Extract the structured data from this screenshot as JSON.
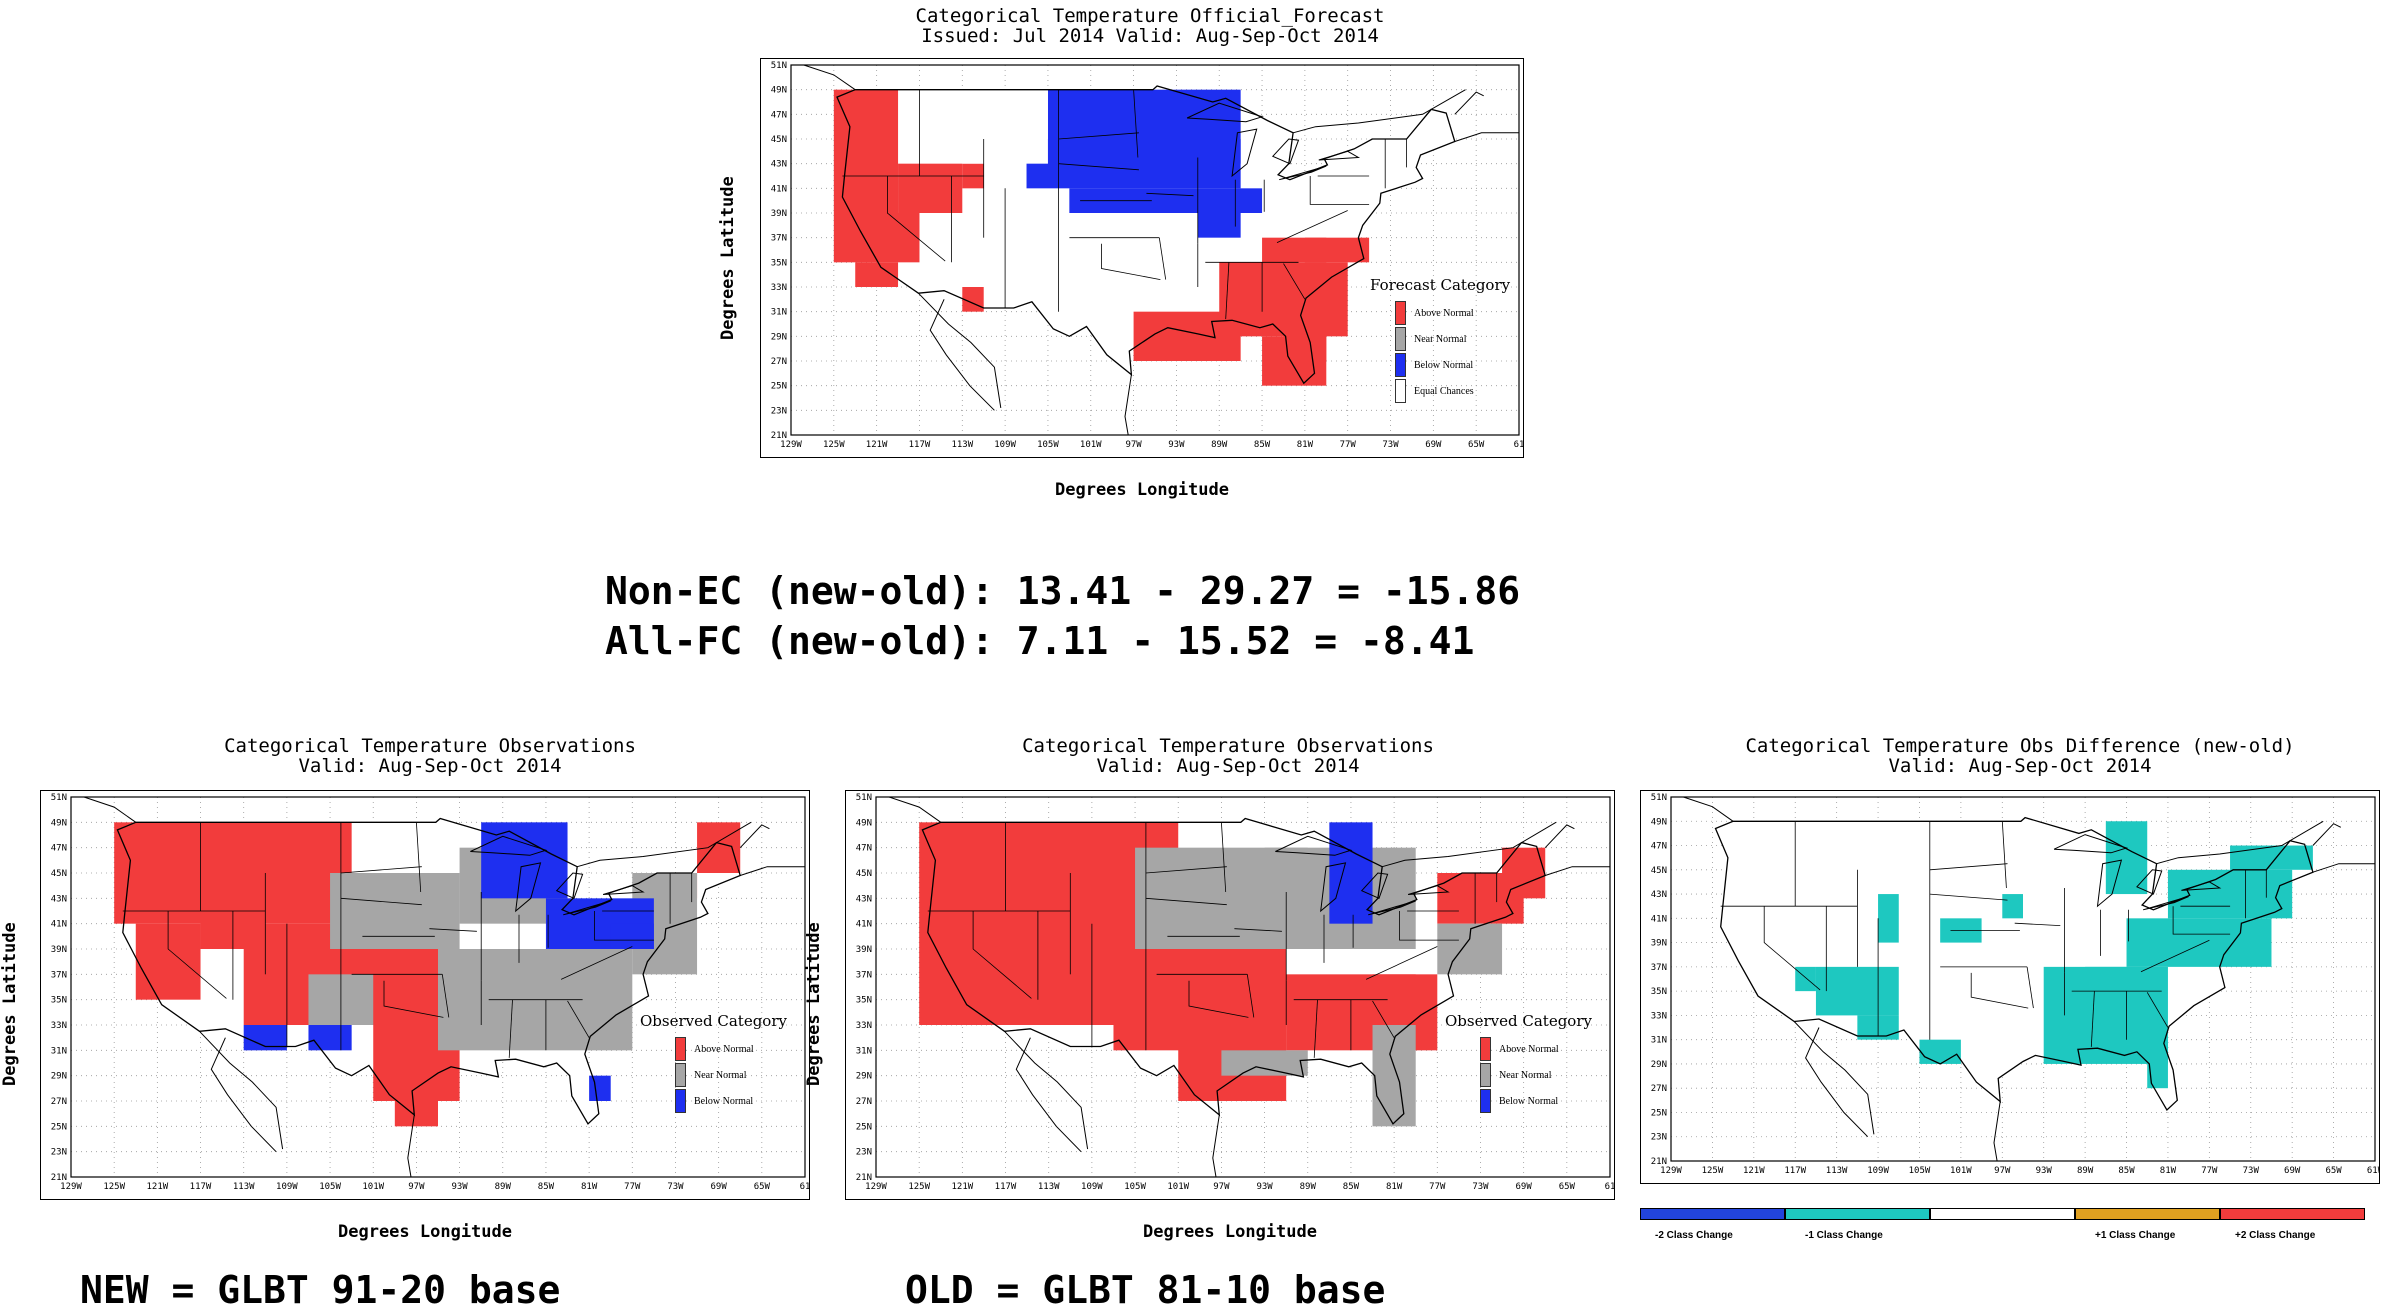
{
  "colors": {
    "above": "#f23c3c",
    "near": "#a6a6a6",
    "below": "#1e2ff0",
    "equal": "#ffffff",
    "minus2": "#2244dd",
    "minus1": "#1ec8c0",
    "zero": "#ffffff",
    "plus1": "#e0a020",
    "plus2": "#f23c3c"
  },
  "forecast": {
    "title_line1": "Categorical Temperature Official_Forecast",
    "title_line2": "Issued: Jul 2014 Valid: Aug-Sep-Oct 2014",
    "ylabel": "Degrees Latitude",
    "xlabel": "Degrees Longitude",
    "legend_title": "Forecast Category",
    "legend": [
      "Above Normal",
      "Near Normal",
      "Below Normal",
      "Equal Chances"
    ]
  },
  "stats": {
    "line1": "Non-EC (new-old): 13.41 - 29.27 = -15.86",
    "line2": "All-FC (new-old): 7.11 - 15.52 = -8.41"
  },
  "obs_new": {
    "title_line1": "Categorical Temperature Observations",
    "title_line2": "Valid: Aug-Sep-Oct 2014",
    "ylabel": "Degrees Latitude",
    "xlabel": "Degrees Longitude",
    "legend_title": "Observed Category",
    "legend": [
      "Above Normal",
      "Near Normal",
      "Below Normal"
    ],
    "base": "NEW = GLBT 91-20 base"
  },
  "obs_old": {
    "title_line1": "Categorical Temperature Observations",
    "title_line2": "Valid: Aug-Sep-Oct 2014",
    "ylabel": "Degrees Latitude",
    "xlabel": "Degrees Longitude",
    "legend_title": "Observed Category",
    "legend": [
      "Above Normal",
      "Near Normal",
      "Below Normal"
    ],
    "base": "OLD = GLBT 81-10 base"
  },
  "diff": {
    "title_line1": "Categorical Temperature Obs Difference (new-old)",
    "title_line2": "Valid: Aug-Sep-Oct 2014",
    "colorbar": [
      "-2 Class Change",
      "-1 Class Change",
      "+1 Class Change",
      "+2 Class Change"
    ]
  },
  "axes": {
    "lat_ticks": [
      "51N",
      "49N",
      "47N",
      "45N",
      "43N",
      "41N",
      "39N",
      "37N",
      "35N",
      "33N",
      "31N",
      "29N",
      "27N",
      "25N",
      "23N",
      "21N"
    ],
    "lon_ticks": [
      "129W",
      "125W",
      "121W",
      "117W",
      "113W",
      "109W",
      "105W",
      "101W",
      "97W",
      "93W",
      "89W",
      "85W",
      "81W",
      "77W",
      "73W",
      "69W",
      "65W",
      "61"
    ],
    "lon_ticks_diff": [
      "129W",
      "125W",
      "121W",
      "117W",
      "113W",
      "109W",
      "105W",
      "101W",
      "97W",
      "93W",
      "89W",
      "85W",
      "81W",
      "77W",
      "73W",
      "69W",
      "65W",
      "61W"
    ]
  },
  "map_data": {
    "lon_range": [
      -129,
      -61
    ],
    "lat_range": [
      21,
      51
    ],
    "cell_deg": 2,
    "forecast_cells": {
      "above": [
        [
          -125,
          39,
          6,
          10
        ],
        [
          -125,
          35,
          8,
          4
        ],
        [
          -123,
          33,
          4,
          2
        ],
        [
          -119,
          39,
          6,
          4
        ],
        [
          -113,
          41,
          2,
          2
        ],
        [
          -113,
          31,
          2,
          2
        ],
        [
          -89,
          29,
          12,
          6
        ],
        [
          -85,
          35,
          6,
          2
        ],
        [
          -81,
          35,
          6,
          2
        ],
        [
          -97,
          27,
          10,
          4
        ],
        [
          -85,
          25,
          6,
          4
        ],
        [
          -83,
          27,
          4,
          4
        ]
      ],
      "below": [
        [
          -105,
          43,
          18,
          6
        ],
        [
          -107,
          41,
          20,
          4
        ],
        [
          -103,
          39,
          18,
          2
        ],
        [
          -91,
          37,
          4,
          2
        ]
      ],
      "equal": [
        [
          -113,
          43,
          8,
          6
        ]
      ]
    },
    "obs_new_cells": {
      "above": [
        [
          -125,
          41,
          22,
          8
        ],
        [
          -123,
          35,
          6,
          6
        ],
        [
          -117,
          39,
          6,
          6
        ],
        [
          -113,
          33,
          18,
          8
        ],
        [
          -101,
          27,
          8,
          6
        ],
        [
          -99,
          25,
          4,
          2
        ],
        [
          -83,
          33,
          4,
          4
        ],
        [
          -75,
          43,
          4,
          2
        ],
        [
          -71,
          45,
          4,
          4
        ]
      ],
      "near": [
        [
          -105,
          39,
          12,
          6
        ],
        [
          -93,
          41,
          10,
          6
        ],
        [
          -95,
          31,
          18,
          8
        ],
        [
          -77,
          37,
          6,
          8
        ],
        [
          -107,
          33,
          6,
          4
        ]
      ],
      "below": [
        [
          -91,
          43,
          8,
          6
        ],
        [
          -85,
          39,
          10,
          4
        ],
        [
          -113,
          31,
          4,
          2
        ],
        [
          -107,
          31,
          4,
          2
        ],
        [
          -81,
          27,
          2,
          2
        ],
        [
          -79,
          39,
          4,
          2
        ]
      ]
    },
    "obs_old_cells": {
      "above": [
        [
          -125,
          33,
          24,
          16
        ],
        [
          -107,
          31,
          16,
          10
        ],
        [
          -101,
          27,
          10,
          8
        ],
        [
          -91,
          31,
          14,
          6
        ],
        [
          -83,
          33,
          4,
          4
        ],
        [
          -77,
          41,
          8,
          4
        ],
        [
          -71,
          43,
          4,
          4
        ]
      ],
      "near": [
        [
          -105,
          39,
          16,
          8
        ],
        [
          -93,
          39,
          14,
          8
        ],
        [
          -97,
          29,
          8,
          2
        ],
        [
          -83,
          25,
          4,
          8
        ],
        [
          -77,
          37,
          6,
          4
        ]
      ],
      "below": [
        [
          -87,
          41,
          4,
          8
        ]
      ]
    },
    "diff_cells": {
      "minus1": [
        [
          -115,
          33,
          8,
          4
        ],
        [
          -111,
          31,
          4,
          2
        ],
        [
          -105,
          29,
          4,
          2
        ],
        [
          -93,
          29,
          12,
          8
        ],
        [
          -89,
          35,
          6,
          2
        ],
        [
          -85,
          37,
          14,
          4
        ],
        [
          -81,
          41,
          12,
          4
        ],
        [
          -75,
          45,
          8,
          2
        ],
        [
          -87,
          43,
          4,
          6
        ],
        [
          -83,
          27,
          2,
          4
        ],
        [
          -109,
          39,
          2,
          4
        ],
        [
          -103,
          39,
          4,
          2
        ],
        [
          -97,
          41,
          2,
          2
        ],
        [
          -117,
          35,
          2,
          2
        ]
      ]
    }
  }
}
